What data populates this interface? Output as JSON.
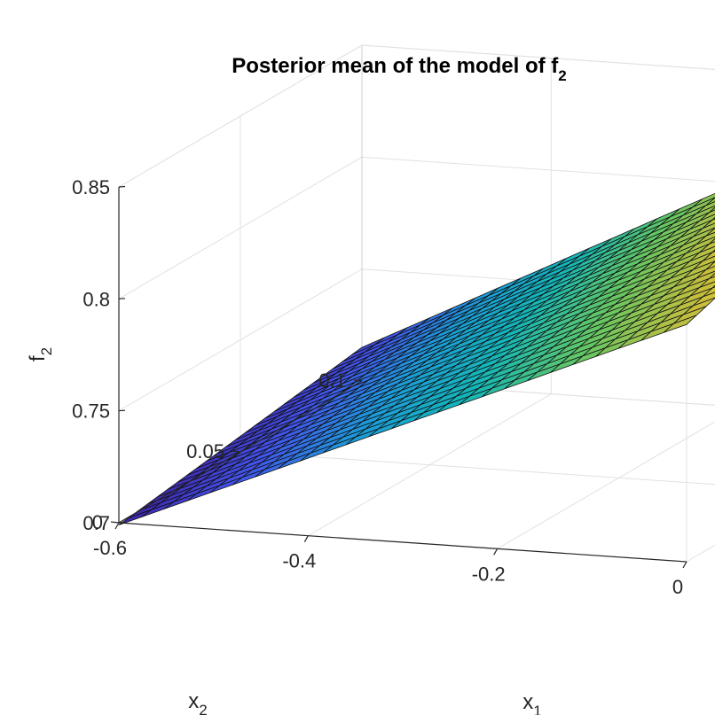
{
  "chart_data": {
    "type": "surface",
    "title_main": "Posterior mean of the model of f",
    "title_sub": "2",
    "xlabel_main": "x",
    "xlabel_sub": "1",
    "ylabel_main": "x",
    "ylabel_sub": "2",
    "zlabel_main": "f",
    "zlabel_sub": "2",
    "xlim": [
      -0.6,
      0
    ],
    "ylim": [
      0,
      0.1
    ],
    "zlim": [
      0.7,
      0.85
    ],
    "x_ticks": [
      {
        "value": -0.6,
        "label": "-0.6"
      },
      {
        "value": -0.4,
        "label": "-0.4"
      },
      {
        "value": -0.2,
        "label": "-0.2"
      },
      {
        "value": 0,
        "label": "0"
      }
    ],
    "y_ticks": [
      {
        "value": 0,
        "label": "0"
      },
      {
        "value": 0.05,
        "label": "0.05"
      },
      {
        "value": 0.1,
        "label": "0.1"
      }
    ],
    "z_ticks": [
      {
        "value": 0.7,
        "label": "0.7"
      },
      {
        "value": 0.75,
        "label": "0.75"
      },
      {
        "value": 0.8,
        "label": "0.8"
      },
      {
        "value": 0.85,
        "label": "0.85"
      }
    ],
    "grid": true,
    "colormap": "parula",
    "colormap_colors": [
      "#3E26A8",
      "#4255ED",
      "#1D9BD9",
      "#14B7B9",
      "#64C764",
      "#C7BE3D",
      "#FCD62F",
      "#F9FB0E"
    ],
    "mesh_resolution": [
      25,
      25
    ],
    "corner_values": [
      {
        "x": -0.6,
        "y": 0.1,
        "z": 0.715
      },
      {
        "x": -0.6,
        "y": 0,
        "z": 0.699
      },
      {
        "x": 0,
        "y": 0.1,
        "z": 0.843
      },
      {
        "x": 0,
        "y": 0,
        "z": 0.806
      }
    ]
  }
}
